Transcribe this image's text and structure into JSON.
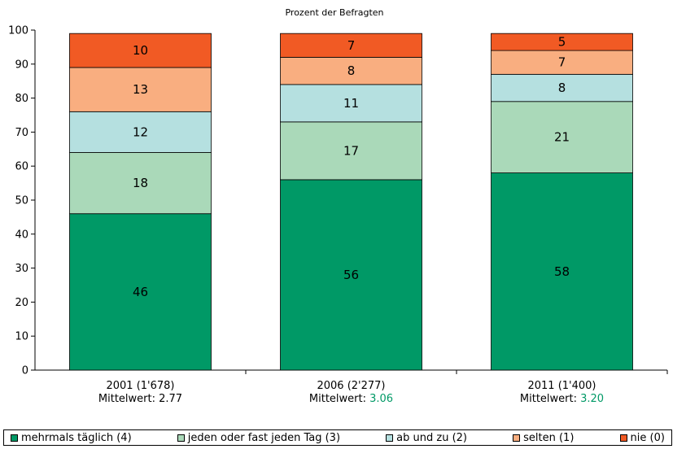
{
  "chart_data": {
    "type": "bar",
    "stacked": true,
    "title": "Prozent der Befragten",
    "ylim": [
      0,
      100
    ],
    "yticks": [
      0,
      10,
      20,
      30,
      40,
      50,
      60,
      70,
      80,
      90,
      100
    ],
    "categories": [
      "2001 (1'678)",
      "2006 (2'277)",
      "2011 (1'400)"
    ],
    "mean_prefix": "Mittelwert: ",
    "means": [
      "2.77",
      "3.06",
      "3.20"
    ],
    "mean_colors": [
      "#000000",
      "#009966",
      "#009966"
    ],
    "series": [
      {
        "name": "mehrmals täglich (4)",
        "color": "#009966",
        "values": [
          46,
          56,
          58
        ]
      },
      {
        "name": "jeden oder fast jeden Tag (3)",
        "color": "#aad9b9",
        "values": [
          18,
          17,
          21
        ]
      },
      {
        "name": "ab und zu (2)",
        "color": "#b5e0e0",
        "values": [
          12,
          11,
          8
        ]
      },
      {
        "name": "selten (1)",
        "color": "#f9ae80",
        "values": [
          13,
          8,
          7
        ]
      },
      {
        "name": "nie (0)",
        "color": "#f15a24",
        "values": [
          10,
          7,
          5
        ]
      }
    ],
    "grid": false,
    "legend": "bottom"
  }
}
